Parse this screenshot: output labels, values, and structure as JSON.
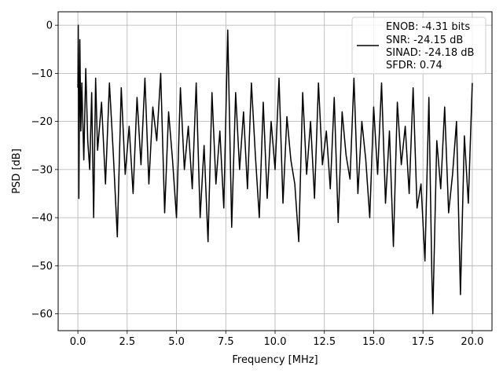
{
  "chart_data": {
    "type": "line",
    "title": "",
    "xlabel": "Frequency [MHz]",
    "ylabel": "PSD [dB]",
    "xlim": [
      -1.0,
      21.0
    ],
    "ylim": [
      -63.5,
      2.8
    ],
    "xticks": [
      0.0,
      2.5,
      5.0,
      7.5,
      10.0,
      12.5,
      15.0,
      17.5,
      20.0
    ],
    "xtick_labels": [
      "0.0",
      "2.5",
      "5.0",
      "7.5",
      "10.0",
      "12.5",
      "15.0",
      "17.5",
      "20.0"
    ],
    "yticks": [
      0,
      -10,
      -20,
      -30,
      -40,
      -50,
      -60
    ],
    "ytick_labels": [
      "0",
      "−10",
      "−20",
      "−30",
      "−40",
      "−50",
      "−60"
    ],
    "grid": true,
    "legend_position": "top-right",
    "legend_lines": [
      "ENOB: -4.31 bits",
      "SNR: -24.15 dB",
      "SINAD: -24.18 dB",
      "SFDR: 0.74"
    ],
    "line_color": "#000000",
    "series": [
      {
        "x": [
          0.0,
          0.02,
          0.05,
          0.1,
          0.15,
          0.2,
          0.3,
          0.4,
          0.5,
          0.6,
          0.7,
          0.8,
          0.9,
          1.0,
          1.2,
          1.4,
          1.6,
          1.8,
          2.0,
          2.2,
          2.4,
          2.6,
          2.8,
          3.0,
          3.2,
          3.4,
          3.6,
          3.8,
          4.0,
          4.2,
          4.4,
          4.6,
          4.8,
          5.0,
          5.2,
          5.4,
          5.6,
          5.8,
          6.0,
          6.2,
          6.4,
          6.6,
          6.8,
          7.0,
          7.2,
          7.4,
          7.6,
          7.8,
          8.0,
          8.2,
          8.4,
          8.6,
          8.8,
          9.0,
          9.2,
          9.4,
          9.6,
          9.8,
          10.0,
          10.2,
          10.4,
          10.6,
          10.8,
          11.0,
          11.2,
          11.4,
          11.6,
          11.8,
          12.0,
          12.2,
          12.4,
          12.6,
          12.8,
          13.0,
          13.2,
          13.4,
          13.6,
          13.8,
          14.0,
          14.2,
          14.4,
          14.6,
          14.8,
          15.0,
          15.2,
          15.4,
          15.6,
          15.8,
          16.0,
          16.2,
          16.4,
          16.6,
          16.8,
          17.0,
          17.2,
          17.4,
          17.6,
          17.8,
          17.95,
          18.0,
          18.2,
          18.4,
          18.6,
          18.8,
          19.0,
          19.2,
          19.4,
          19.6,
          19.8,
          20.0
        ],
        "y": [
          -13,
          0,
          -36,
          -3,
          -22,
          -12,
          -28,
          -9,
          -24,
          -30,
          -14,
          -40,
          -11,
          -26,
          -16,
          -33,
          -12,
          -27,
          -44,
          -13,
          -31,
          -21,
          -35,
          -15,
          -29,
          -11,
          -33,
          -17,
          -24,
          -10,
          -39,
          -18,
          -28,
          -40,
          -13,
          -30,
          -21,
          -34,
          -12,
          -40,
          -25,
          -45,
          -14,
          -33,
          -22,
          -38,
          -1,
          -42,
          -14,
          -30,
          -18,
          -34,
          -12,
          -27,
          -40,
          -16,
          -36,
          -20,
          -30,
          -11,
          -37,
          -19,
          -28,
          -33,
          -45,
          -14,
          -31,
          -20,
          -36,
          -12,
          -29,
          -22,
          -34,
          -15,
          -41,
          -18,
          -27,
          -32,
          -11,
          -35,
          -20,
          -28,
          -40,
          -17,
          -31,
          -12,
          -37,
          -22,
          -46,
          -16,
          -29,
          -21,
          -35,
          -13,
          -38,
          -33,
          -49,
          -15,
          -52,
          -60,
          -24,
          -34,
          -17,
          -39,
          -31,
          -20,
          -56,
          -23,
          -37,
          -12
        ]
      }
    ]
  }
}
